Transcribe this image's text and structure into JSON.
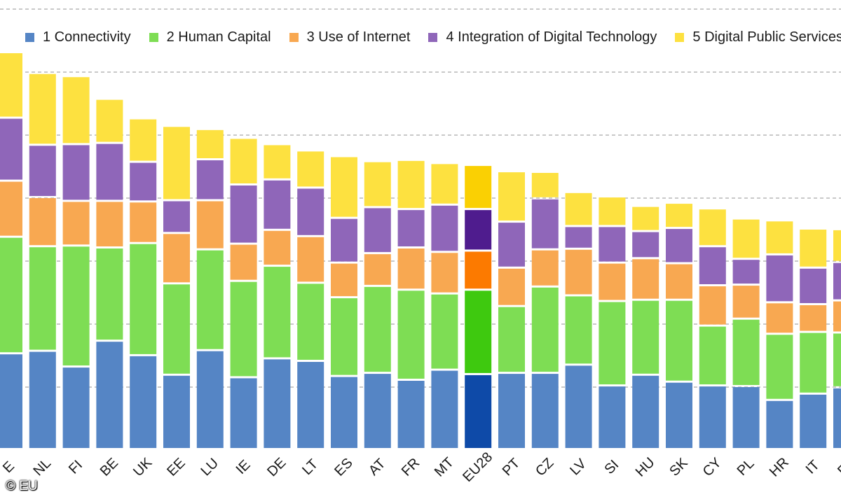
{
  "chart_data": {
    "type": "bar",
    "stacked": true,
    "grid": "horizontal dashed",
    "legend_position": "top",
    "categories": [
      "SE",
      "NL",
      "FI",
      "BE",
      "UK",
      "EE",
      "LU",
      "IE",
      "DE",
      "LT",
      "ES",
      "AT",
      "FR",
      "MT",
      "EU28",
      "PT",
      "CZ",
      "LV",
      "SI",
      "HU",
      "SK",
      "CY",
      "PL",
      "HR",
      "IT",
      "EL"
    ],
    "x_tick_labels": [
      "E",
      "NL",
      "FI",
      "BE",
      "UK",
      "EE",
      "LU",
      "IE",
      "DE",
      "LT",
      "ES",
      "AT",
      "FR",
      "MT",
      "EU28",
      "PT",
      "CZ",
      "LV",
      "SI",
      "HU",
      "SK",
      "CY",
      "PL",
      "HR",
      "IT",
      "EL"
    ],
    "highlight_category": "EU28",
    "series": [
      {
        "name": "1 Connectivity",
        "color": "#5585c5",
        "highlight_color": "#0e4aa8",
        "values": [
          0.152,
          0.156,
          0.131,
          0.172,
          0.149,
          0.118,
          0.157,
          0.114,
          0.144,
          0.14,
          0.116,
          0.121,
          0.11,
          0.126,
          0.119,
          0.121,
          0.121,
          0.134,
          0.101,
          0.118,
          0.107,
          0.101,
          0.1,
          0.078,
          0.088,
          0.098
        ]
      },
      {
        "name": "2 Human Capital",
        "color": "#7edd54",
        "highlight_color": "#3ec90f",
        "values": [
          0.185,
          0.166,
          0.192,
          0.148,
          0.178,
          0.145,
          0.16,
          0.153,
          0.147,
          0.124,
          0.125,
          0.138,
          0.143,
          0.121,
          0.134,
          0.106,
          0.137,
          0.11,
          0.134,
          0.119,
          0.13,
          0.095,
          0.107,
          0.105,
          0.098,
          0.087
        ]
      },
      {
        "name": "3 Use of Internet",
        "color": "#f8a851",
        "highlight_color": "#fc7a00",
        "values": [
          0.089,
          0.078,
          0.071,
          0.074,
          0.066,
          0.08,
          0.078,
          0.059,
          0.057,
          0.074,
          0.055,
          0.052,
          0.067,
          0.066,
          0.062,
          0.061,
          0.059,
          0.074,
          0.061,
          0.066,
          0.058,
          0.064,
          0.054,
          0.05,
          0.044,
          0.051
        ]
      },
      {
        "name": "4 Integration of Digital Technology",
        "color": "#8f66b9",
        "highlight_color": "#4f1c8e",
        "values": [
          0.1,
          0.083,
          0.09,
          0.092,
          0.063,
          0.052,
          0.065,
          0.094,
          0.08,
          0.077,
          0.071,
          0.073,
          0.061,
          0.075,
          0.066,
          0.073,
          0.081,
          0.036,
          0.058,
          0.043,
          0.056,
          0.062,
          0.041,
          0.076,
          0.058,
          0.061
        ]
      },
      {
        "name": "5 Digital Public Services",
        "color": "#fde140",
        "highlight_color": "#fad003",
        "values": [
          0.104,
          0.114,
          0.108,
          0.07,
          0.069,
          0.118,
          0.048,
          0.074,
          0.056,
          0.059,
          0.098,
          0.073,
          0.078,
          0.066,
          0.07,
          0.08,
          0.042,
          0.054,
          0.047,
          0.04,
          0.04,
          0.06,
          0.064,
          0.054,
          0.062,
          0.052
        ]
      }
    ],
    "ylim": [
      0,
      0.7
    ],
    "y_gridlines": [
      0.1,
      0.2,
      0.3,
      0.4,
      0.5,
      0.6,
      0.7
    ],
    "title": "",
    "xlabel": "",
    "ylabel": ""
  },
  "copyright": "© EU"
}
